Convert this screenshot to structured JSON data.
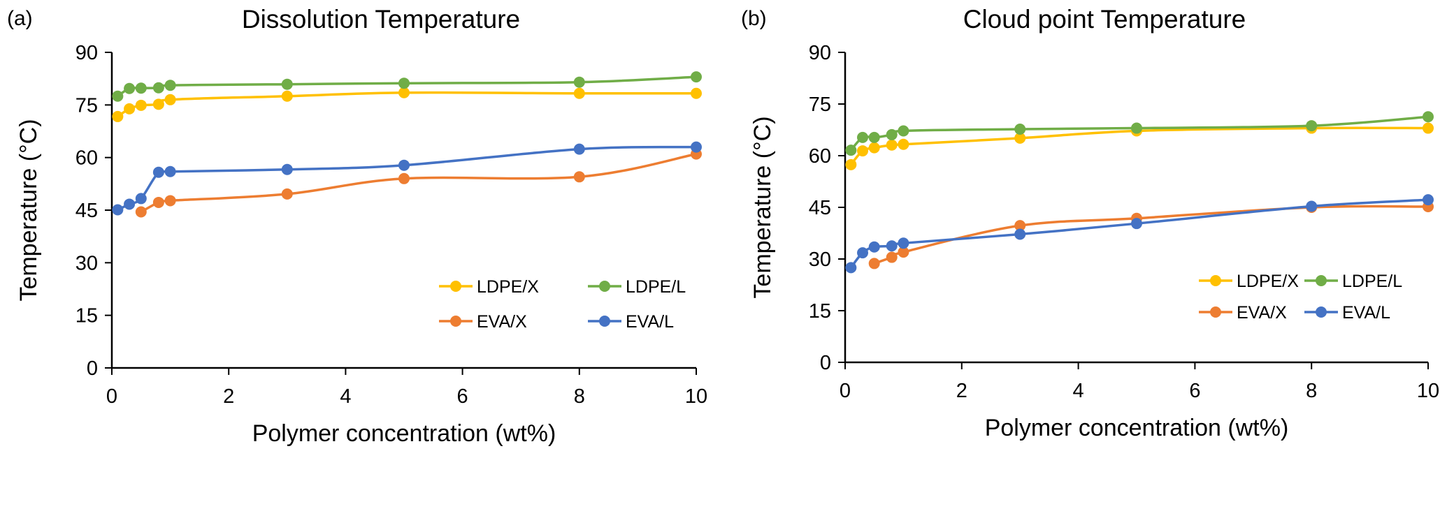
{
  "chart_data": [
    {
      "panel_label": "(a)",
      "type": "line",
      "title": "Dissolution Temperature",
      "xlabel": "Polymer concentration (wt%)",
      "ylabel": "Temperature (°C)",
      "xlim": [
        0,
        10
      ],
      "ylim": [
        0,
        90
      ],
      "xticks": [
        "0",
        "2",
        "4",
        "6",
        "8",
        "10"
      ],
      "yticks": [
        "0",
        "15",
        "30",
        "45",
        "60",
        "75",
        "90"
      ],
      "grid": false,
      "legend": "bottom-right",
      "series": [
        {
          "name": "LDPE/X",
          "color": "#FFC000",
          "x": [
            0.1,
            0.3,
            0.5,
            0.8,
            1,
            3,
            5,
            8,
            10
          ],
          "y": [
            71.7,
            73.9,
            74.9,
            75.2,
            76.5,
            77.5,
            78.5,
            78.3,
            78.3
          ]
        },
        {
          "name": "LDPE/L",
          "color": "#70AD47",
          "x": [
            0.1,
            0.3,
            0.5,
            0.8,
            1,
            3,
            5,
            8,
            10
          ],
          "y": [
            77.5,
            79.7,
            79.8,
            79.9,
            80.6,
            80.9,
            81.2,
            81.5,
            83.0
          ]
        },
        {
          "name": "EVA/X",
          "color": "#ED7D31",
          "x": [
            0.5,
            0.8,
            1,
            3,
            5,
            8,
            10
          ],
          "y": [
            44.5,
            47.2,
            47.7,
            49.6,
            54.0,
            54.5,
            61.0
          ]
        },
        {
          "name": "EVA/L",
          "color": "#4472C4",
          "x": [
            0.1,
            0.3,
            0.5,
            0.8,
            1,
            3,
            5,
            8,
            10
          ],
          "y": [
            45.1,
            46.7,
            48.3,
            55.8,
            56.0,
            56.6,
            57.8,
            62.4,
            63.0
          ]
        }
      ]
    },
    {
      "panel_label": "(b)",
      "type": "line",
      "title": "Cloud point Temperature",
      "xlabel": "Polymer concentration (wt%)",
      "ylabel": "Temperature (°C)",
      "xlim": [
        0,
        10
      ],
      "ylim": [
        0,
        90
      ],
      "xticks": [
        "0",
        "2",
        "4",
        "6",
        "8",
        "10"
      ],
      "yticks": [
        "0",
        "15",
        "30",
        "45",
        "60",
        "75",
        "90"
      ],
      "grid": false,
      "legend": "bottom-right",
      "series": [
        {
          "name": "LDPE/X",
          "color": "#FFC000",
          "x": [
            0.1,
            0.3,
            0.5,
            0.8,
            1,
            3,
            5,
            8,
            10
          ],
          "y": [
            57.4,
            61.4,
            62.3,
            63.1,
            63.3,
            65.1,
            67.2,
            68.0,
            68.0
          ]
        },
        {
          "name": "LDPE/L",
          "color": "#70AD47",
          "x": [
            0.1,
            0.3,
            0.5,
            0.8,
            1,
            3,
            5,
            8,
            10
          ],
          "y": [
            61.6,
            65.3,
            65.3,
            66.1,
            67.2,
            67.7,
            68.0,
            68.7,
            71.3
          ]
        },
        {
          "name": "EVA/X",
          "color": "#ED7D31",
          "x": [
            0.5,
            0.8,
            1,
            3,
            5,
            8,
            10
          ],
          "y": [
            28.7,
            30.5,
            32.0,
            39.7,
            41.8,
            45.0,
            45.2
          ]
        },
        {
          "name": "EVA/L",
          "color": "#4472C4",
          "x": [
            0.1,
            0.3,
            0.5,
            0.8,
            1,
            3,
            5,
            8,
            10
          ],
          "y": [
            27.5,
            31.8,
            33.5,
            33.8,
            34.6,
            37.2,
            40.3,
            45.3,
            47.2
          ]
        }
      ]
    }
  ]
}
